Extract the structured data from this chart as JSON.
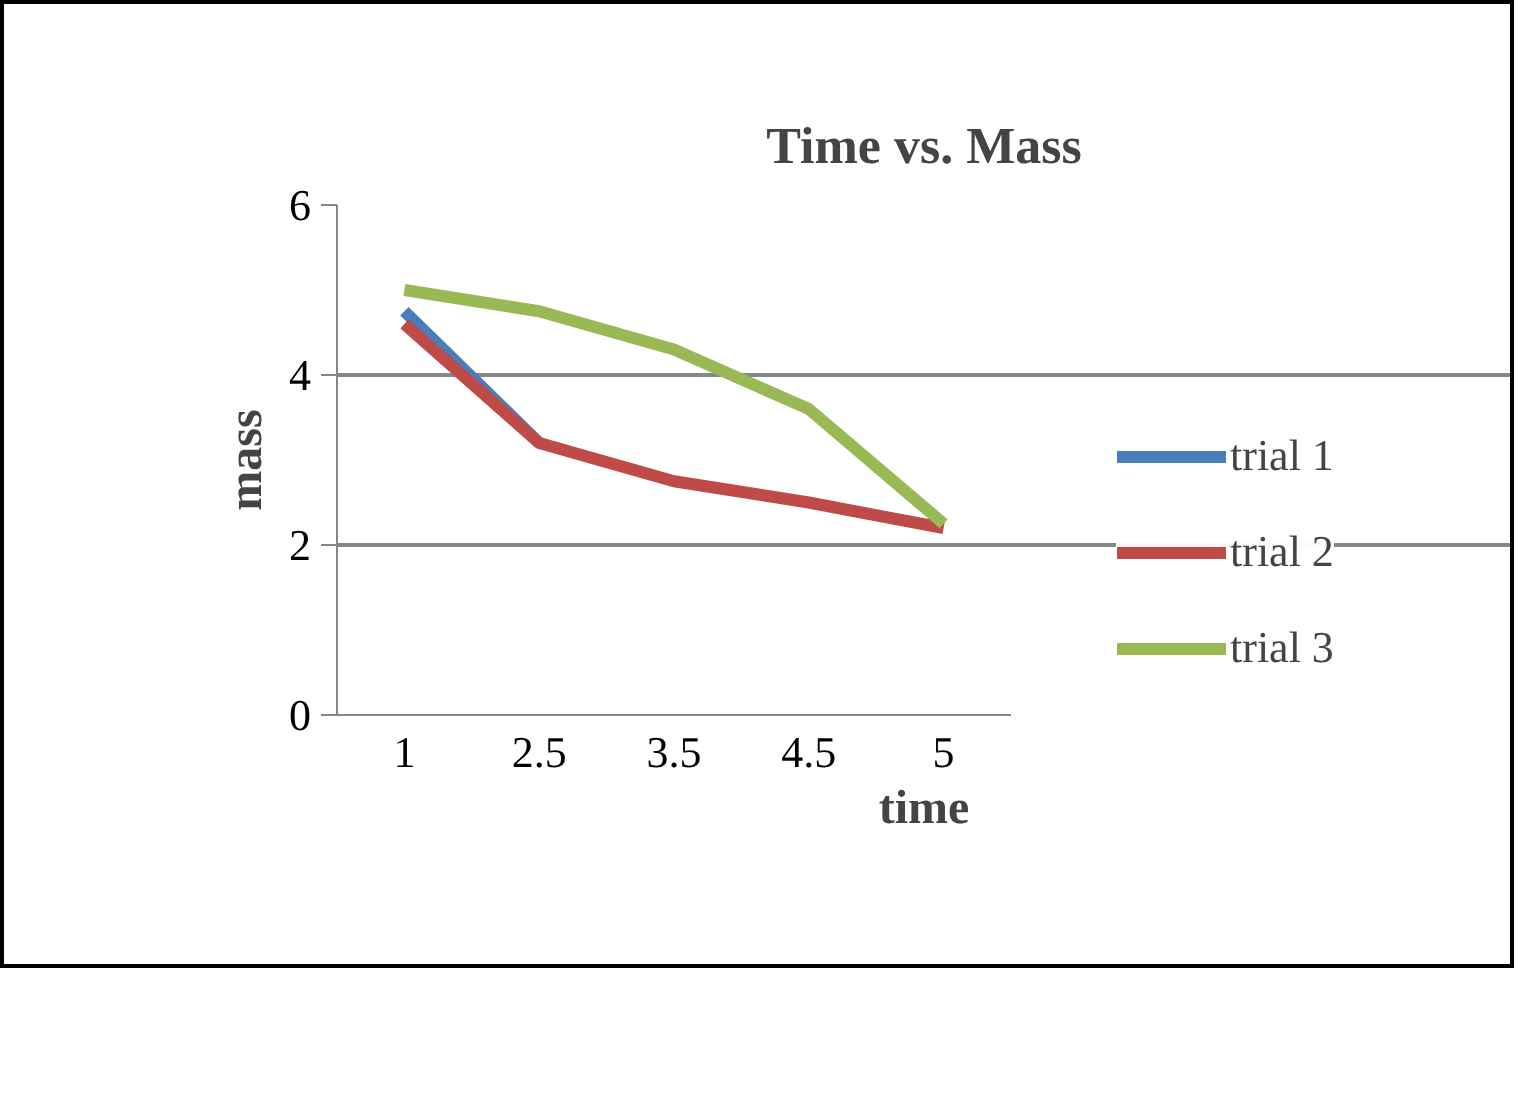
{
  "chart_data": {
    "type": "line",
    "title": "Time vs. Mass",
    "xlabel": "time",
    "ylabel": "mass",
    "categories": [
      "1",
      "2.5",
      "3.5",
      "4.5",
      "5"
    ],
    "series": [
      {
        "name": "trial 1",
        "color": "#4a7ebb",
        "values": [
          4.75,
          3.2,
          null,
          null,
          null
        ]
      },
      {
        "name": "trial 2",
        "color": "#be4b48",
        "values": [
          4.6,
          3.2,
          2.75,
          2.5,
          2.2
        ]
      },
      {
        "name": "trial 3",
        "color": "#98b954",
        "values": [
          5.0,
          4.75,
          4.3,
          3.6,
          2.25
        ]
      }
    ],
    "ylim": [
      0,
      6
    ],
    "yticks": [
      0,
      2,
      4,
      6
    ],
    "grid": "y",
    "legend": "right",
    "marker": "none",
    "line_style": "solid"
  }
}
